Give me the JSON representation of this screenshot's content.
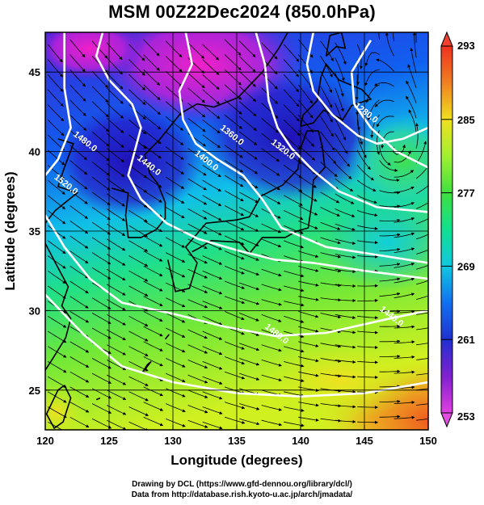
{
  "title": "MSM 00Z22Dec2024 (850.0hPa)",
  "x_axis": {
    "label": "Longitude (degrees)",
    "range": [
      120,
      150
    ],
    "ticks": [
      "120",
      "125",
      "130",
      "135",
      "140",
      "145",
      "150"
    ]
  },
  "y_axis": {
    "label": "Latitude  (degrees)",
    "range": [
      22.5,
      47.5
    ],
    "ticks": [
      "25",
      "30",
      "35",
      "40",
      "45"
    ]
  },
  "colorbar": {
    "range": [
      253,
      293
    ],
    "ticks": [
      "253",
      "261",
      "269",
      "277",
      "285",
      "293"
    ],
    "colors": [
      "#e040e0",
      "#8020d0",
      "#2030d0",
      "#1070f0",
      "#10c8e0",
      "#10e090",
      "#40e040",
      "#a0f030",
      "#f0e020",
      "#f08020",
      "#f03020"
    ]
  },
  "contours": [
    {
      "label": "1320.0",
      "lat": 40.0,
      "lon": 138.5
    },
    {
      "label": "1360.0",
      "lat": 40.9,
      "lon": 134.5
    },
    {
      "label": "1400.0",
      "lat": 39.3,
      "lon": 132.5
    },
    {
      "label": "1440.0",
      "lat": 39.0,
      "lon": 128.0
    },
    {
      "label": "1480.0",
      "lat": 40.5,
      "lon": 123.0
    },
    {
      "label": "1520.0",
      "lat": 37.8,
      "lon": 121.5
    },
    {
      "label": "1280.0",
      "lat": 42.3,
      "lon": 145.0
    },
    {
      "label": "1440.0",
      "lat": 29.5,
      "lon": 147.0
    },
    {
      "label": "1480.0",
      "lat": 28.4,
      "lon": 138.0
    }
  ],
  "credits": {
    "line1": "Drawing by DCL (https://www.gfd-dennou.org/library/dcl/)",
    "line2": "Data from http://database.rish.kyoto-u.ac.jp/arch/jmadata/"
  }
}
